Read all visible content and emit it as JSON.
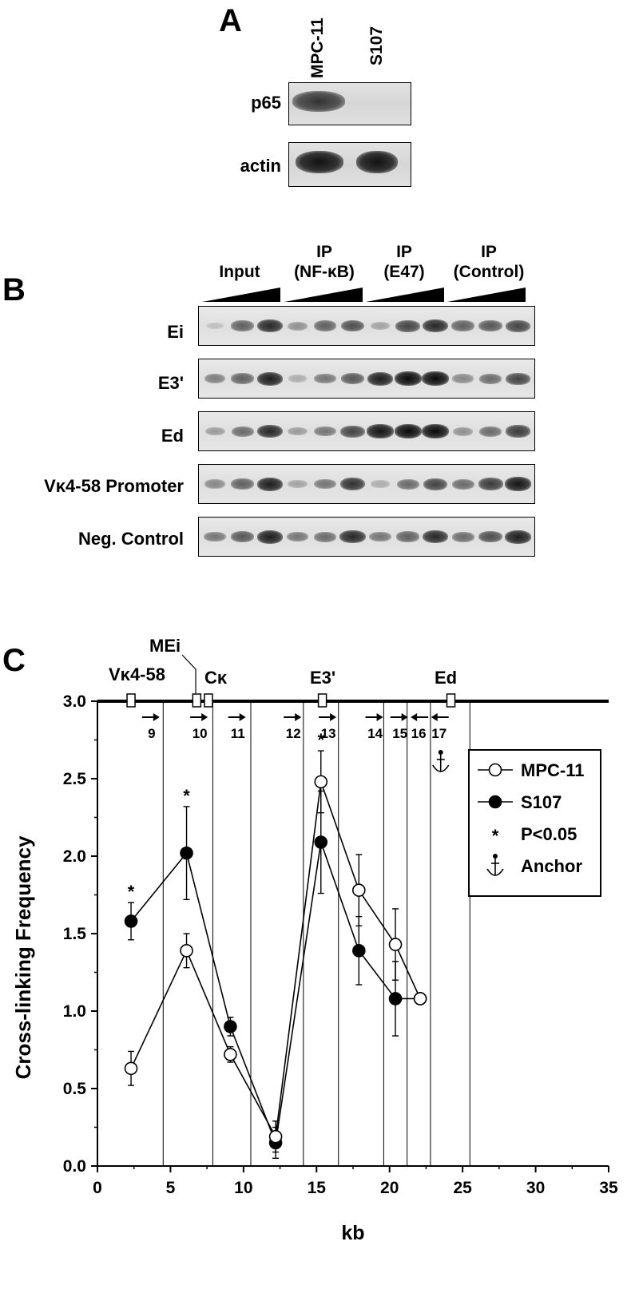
{
  "panel_a": {
    "letter": "A",
    "lanes": [
      "MPC-11",
      "S107"
    ],
    "rows": [
      "p65",
      "actin"
    ]
  },
  "panel_b": {
    "letter": "B",
    "groups": [
      {
        "line1": "",
        "line2": "Input"
      },
      {
        "line1": "IP",
        "line2": "(NF-κB)"
      },
      {
        "line1": "IP",
        "line2": "(E47)"
      },
      {
        "line1": "IP",
        "line2": "(Control)"
      }
    ],
    "rows": [
      "Ei",
      "E3'",
      "Ed",
      "Vκ4-58 Promoter",
      "Neg. Control"
    ]
  },
  "panel_c": {
    "letter": "C",
    "map_labels": {
      "vk": "Vκ4-58",
      "mei": "MEi",
      "ck": "Cκ",
      "e3": "E3'",
      "ed": "Ed"
    },
    "primer_numbers": [
      "9",
      "10",
      "11",
      "12",
      "13",
      "14",
      "15",
      "16",
      "17"
    ]
  },
  "chart_data": {
    "type": "line",
    "title": "",
    "xlabel": "kb",
    "ylabel": "Cross-linking Frequency",
    "xlim": [
      0,
      35
    ],
    "ylim": [
      0,
      3.0
    ],
    "xticks": [
      "0",
      "5",
      "10",
      "15",
      "20",
      "25",
      "30",
      "35"
    ],
    "yticks": [
      "0.0",
      "0.5",
      "1.0",
      "1.5",
      "2.0",
      "2.5",
      "3.0"
    ],
    "series": [
      {
        "name": "MPC-11",
        "marker": "open-circle",
        "x": [
          2.3,
          6.1,
          9.1,
          12.2,
          15.3,
          17.9,
          20.4,
          22.1
        ],
        "y": [
          0.63,
          1.39,
          0.72,
          0.19,
          2.48,
          1.78,
          1.43,
          1.08
        ],
        "err": [
          0.11,
          0.11,
          0.05,
          0.1,
          0.2,
          0.23,
          0.23,
          0
        ]
      },
      {
        "name": "S107",
        "marker": "filled-circle",
        "x": [
          2.3,
          6.1,
          9.1,
          12.2,
          15.3,
          17.9,
          20.4,
          22.1
        ],
        "y": [
          1.58,
          2.02,
          0.9,
          0.15,
          2.09,
          1.39,
          1.08,
          1.08
        ],
        "err": [
          0.12,
          0.3,
          0.06,
          0.1,
          0.33,
          0.22,
          0.24,
          0
        ]
      }
    ],
    "significance_x": [
      2.3,
      6.1,
      15.3
    ],
    "legend": {
      "items": [
        "MPC-11",
        "S107",
        "P<0.05",
        "Anchor"
      ],
      "star": "*",
      "placement": "top-right"
    },
    "grid_x": [
      4.5,
      7.9,
      10.5,
      14.1,
      16.5,
      19.6,
      21.2,
      22.8,
      25.5
    ]
  }
}
